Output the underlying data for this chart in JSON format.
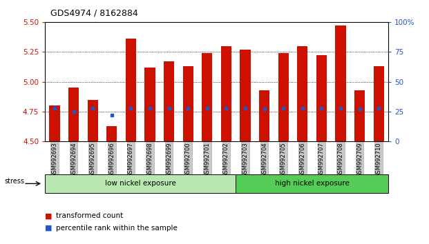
{
  "title": "GDS4974 / 8162884",
  "samples": [
    "GSM992693",
    "GSM992694",
    "GSM992695",
    "GSM992696",
    "GSM992697",
    "GSM992698",
    "GSM992699",
    "GSM992700",
    "GSM992701",
    "GSM992702",
    "GSM992703",
    "GSM992704",
    "GSM992705",
    "GSM992706",
    "GSM992707",
    "GSM992708",
    "GSM992709",
    "GSM992710"
  ],
  "transformed_count": [
    4.8,
    4.95,
    4.85,
    4.63,
    5.36,
    5.12,
    5.17,
    5.13,
    5.24,
    5.3,
    5.27,
    4.93,
    5.24,
    5.3,
    5.22,
    5.47,
    4.93,
    5.13
  ],
  "percentile_rank": [
    28,
    25,
    28,
    22,
    28,
    28,
    28,
    28,
    28,
    28,
    28,
    27,
    28,
    28,
    28,
    28,
    27,
    28
  ],
  "bar_bottom": 4.5,
  "ylim": [
    4.5,
    5.5
  ],
  "yticks": [
    4.5,
    4.75,
    5.0,
    5.25,
    5.5
  ],
  "right_ylim": [
    0,
    100
  ],
  "right_yticks": [
    0,
    25,
    50,
    75,
    100
  ],
  "right_yticklabels": [
    "0",
    "25",
    "50",
    "75",
    "100%"
  ],
  "bar_color": "#cc1100",
  "percentile_color": "#2255cc",
  "bar_width": 0.55,
  "low_nickel_count": 10,
  "high_nickel_count": 8,
  "group_label_low": "low nickel exposure",
  "group_label_high": "high nickel exposure",
  "stress_label": "stress",
  "legend_transformed": "transformed count",
  "legend_percentile": "percentile rank within the sample",
  "green_low": "#b8e8b0",
  "green_high": "#55cc55",
  "ylabel_color": "#cc1100",
  "right_ylabel_color": "#2255cc",
  "figsize": [
    6.21,
    3.54
  ],
  "dpi": 100
}
